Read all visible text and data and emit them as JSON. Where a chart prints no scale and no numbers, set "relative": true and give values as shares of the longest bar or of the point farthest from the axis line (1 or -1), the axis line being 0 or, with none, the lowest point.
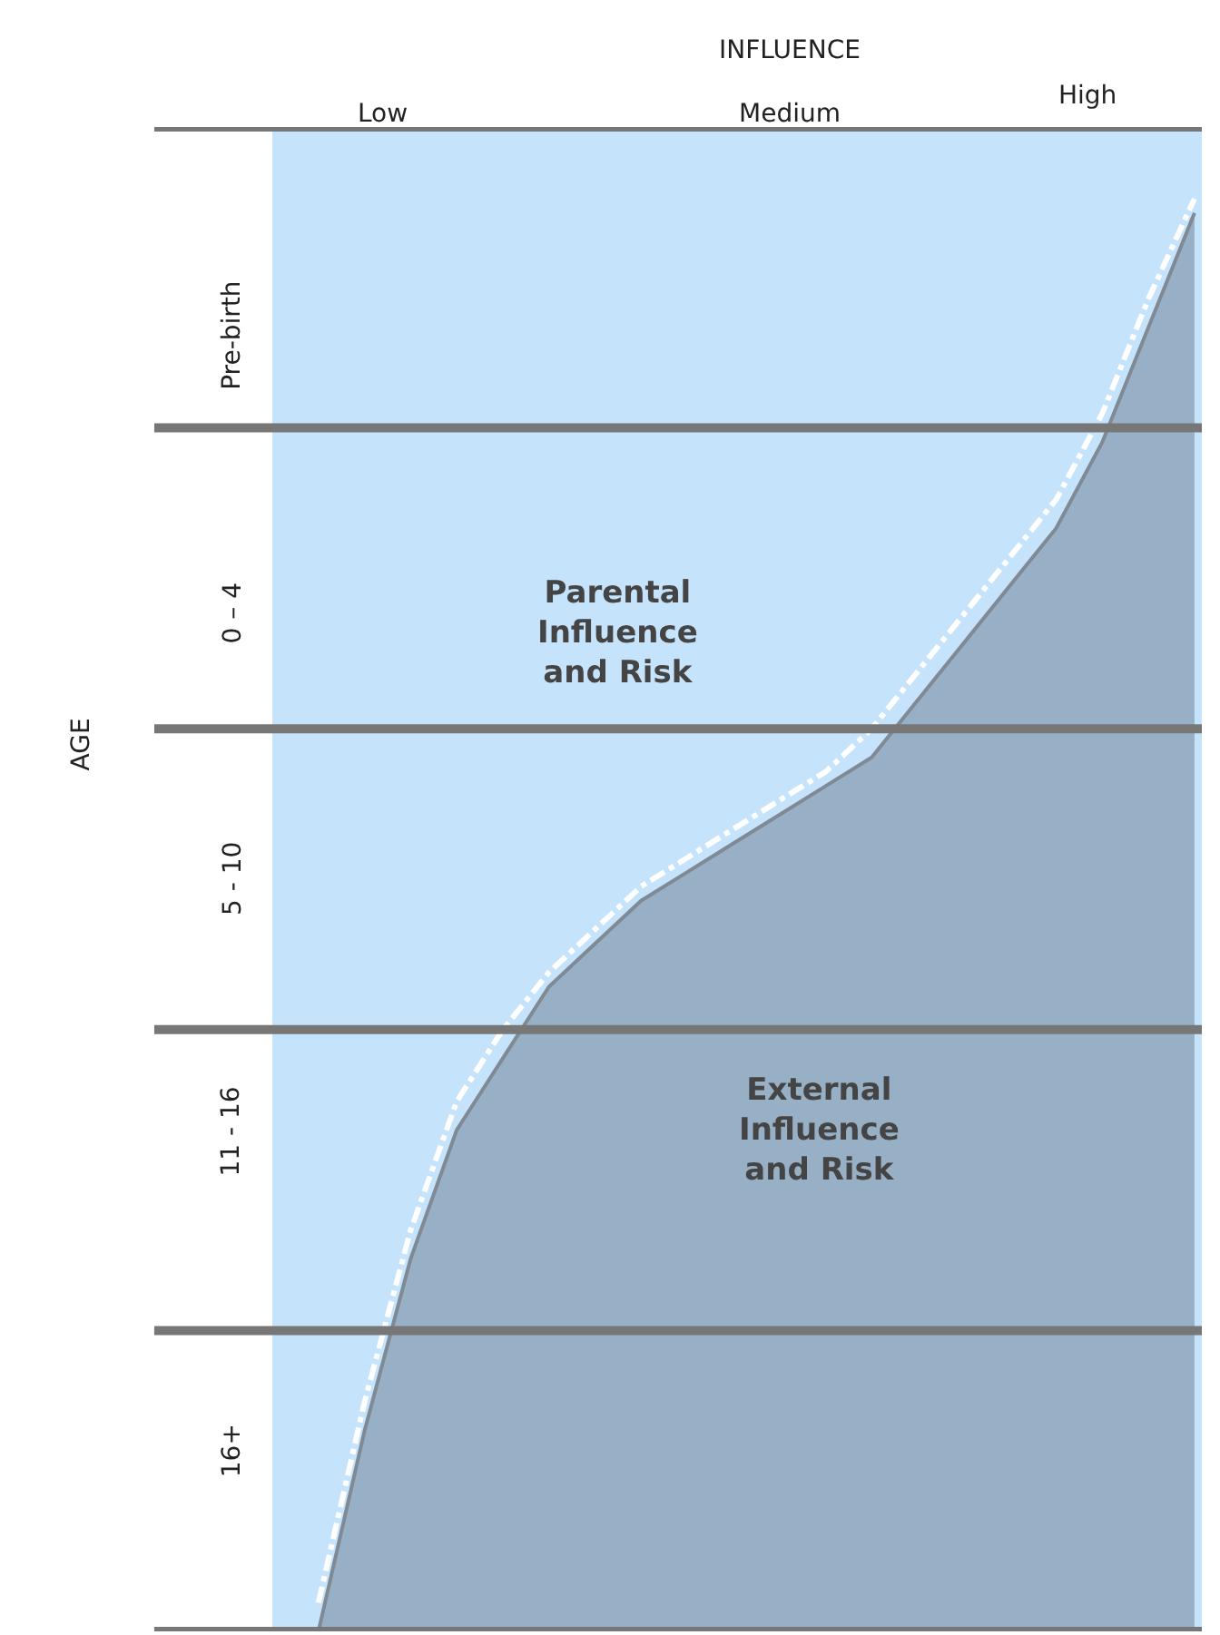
{
  "chart_data": {
    "type": "area",
    "relative": true,
    "grid": false,
    "categories": [
      null,
      null,
      null,
      null,
      null,
      null,
      null,
      null,
      null,
      null,
      null,
      null,
      null,
      null,
      null,
      null,
      null,
      null,
      null,
      null,
      null
    ],
    "series": [
      {
        "color": "#98b0c6",
        "values": [
          null,
          0,
          0.14,
          0.26,
          0.35,
          0.4,
          0.45,
          0.48,
          0.51,
          0.53,
          0.55,
          0.57,
          0.59,
          0.61,
          0.65,
          0.69,
          0.73,
          0.77,
          0.83,
          0.91,
          0.99
        ]
      },
      {
        "type": "line",
        "color": "#ffffff",
        "line_style": "dashed",
        "values": [
          null,
          0.02,
          0.16,
          0.28,
          0.37,
          0.42,
          0.46,
          0.49,
          0.52,
          0.54,
          0.56,
          0.58,
          0.6,
          0.63,
          0.67,
          0.71,
          0.75,
          0.79,
          0.85,
          0.93,
          1
        ]
      }
    ],
    "ref_lines": [
      {
        "axis": "y",
        "value": 0,
        "color": "#777777"
      },
      {
        "axis": "y",
        "value": 0.21,
        "color": "#777777"
      },
      {
        "axis": "y",
        "value": 0.42,
        "color": "#777777"
      },
      {
        "axis": "y",
        "value": 0.63,
        "color": "#777777"
      },
      {
        "axis": "y",
        "value": 0.84,
        "color": "#777777"
      },
      {
        "axis": "y",
        "value": 1.05,
        "color": "#777777"
      }
    ],
    "annotations": [
      "INFLUENCE",
      "AGE",
      "Low",
      "Medium",
      "High",
      "16+",
      "11 - 16",
      "5 - 10",
      "0 – 4",
      "Pre-birth",
      "Parental\nInfluence\nand Risk",
      "External\nInfluence\nand Risk"
    ]
  }
}
